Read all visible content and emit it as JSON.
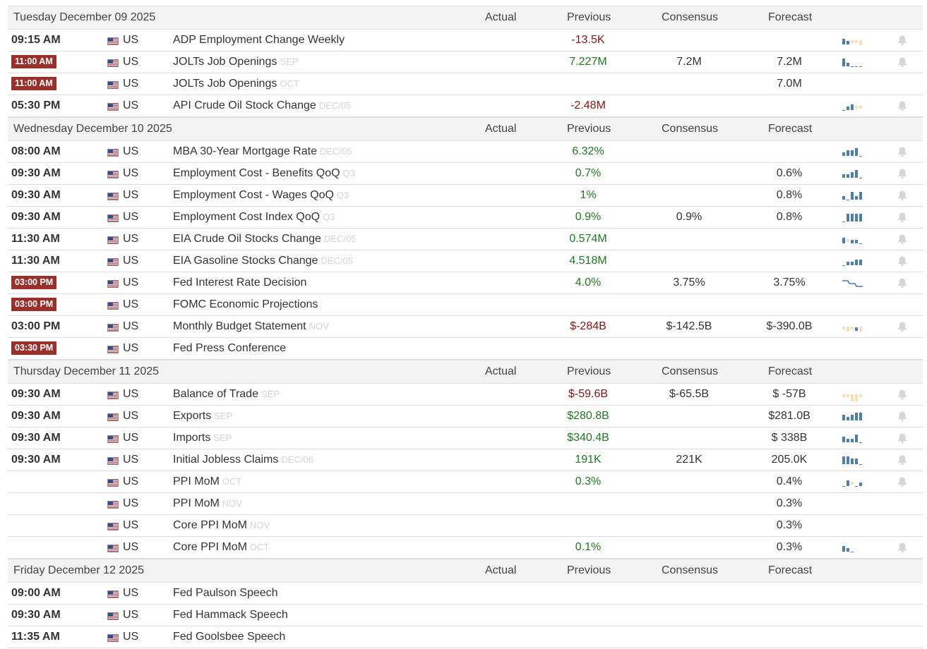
{
  "columns": {
    "actual": "Actual",
    "previous": "Previous",
    "consensus": "Consensus",
    "forecast": "Forecast"
  },
  "colors": {
    "live_badge": "#9b2f2a",
    "positive": "#1e7a1e",
    "negative": "#8b1010",
    "spark_blue": "#4a7eb5",
    "spark_beige": "#f5dfb3",
    "bell": "#d6d6d6"
  },
  "days": [
    {
      "date": "Tuesday December 09 2025",
      "events": [
        {
          "time": "09:15 AM",
          "live": false,
          "country": "US",
          "name": "ADP Employment Change Weekly",
          "ref": "",
          "actual": "",
          "previous": "-13.5K",
          "previous_tone": "neg",
          "consensus": "",
          "forecast": "",
          "spark": [
            "u2",
            "u1",
            "d1",
            "d1",
            "d2"
          ],
          "bell": true
        },
        {
          "time": "11:00 AM",
          "live": true,
          "country": "US",
          "name": "JOLTs Job Openings",
          "ref": "SEP",
          "actual": "",
          "previous": "7.227M",
          "previous_tone": "pos",
          "consensus": "7.2M",
          "forecast": "7.2M",
          "spark": [
            "u3",
            "u1",
            "u0",
            "u0",
            "u0"
          ],
          "bell": true
        },
        {
          "time": "11:00 AM",
          "live": true,
          "country": "US",
          "name": "JOLTs Job Openings",
          "ref": "OCT",
          "actual": "",
          "previous": "",
          "previous_tone": "neu",
          "consensus": "",
          "forecast": "7.0M",
          "spark": null,
          "bell": false
        },
        {
          "time": "05:30 PM",
          "live": false,
          "country": "US",
          "name": "API Crude Oil Stock Change",
          "ref": "DEC/05",
          "actual": "",
          "previous": "-2.48M",
          "previous_tone": "neg",
          "consensus": "",
          "forecast": "",
          "spark": [
            "u0",
            "u1",
            "u2",
            "d1",
            "d1"
          ],
          "bell": true
        }
      ]
    },
    {
      "date": "Wednesday December 10 2025",
      "events": [
        {
          "time": "08:00 AM",
          "live": false,
          "country": "US",
          "name": "MBA 30-Year Mortgage Rate",
          "ref": "DEC/05",
          "actual": "",
          "previous": "6.32%",
          "previous_tone": "pos",
          "consensus": "",
          "forecast": "",
          "spark": [
            "u1",
            "u2",
            "u2",
            "u3",
            "u0"
          ],
          "bell": true
        },
        {
          "time": "09:30 AM",
          "live": false,
          "country": "US",
          "name": "Employment Cost - Benefits QoQ",
          "ref": "Q3",
          "actual": "",
          "previous": "0.7%",
          "previous_tone": "pos",
          "consensus": "",
          "forecast": "0.6%",
          "spark": [
            "u1",
            "u1",
            "u2",
            "u3",
            "u0"
          ],
          "bell": true
        },
        {
          "time": "09:30 AM",
          "live": false,
          "country": "US",
          "name": "Employment Cost - Wages QoQ",
          "ref": "Q3",
          "actual": "",
          "previous": "1%",
          "previous_tone": "pos",
          "consensus": "",
          "forecast": "0.8%",
          "spark": [
            "u1",
            "u0",
            "u3",
            "u1",
            "u3"
          ],
          "bell": true
        },
        {
          "time": "09:30 AM",
          "live": false,
          "country": "US",
          "name": "Employment Cost Index QoQ",
          "ref": "Q3",
          "actual": "",
          "previous": "0.9%",
          "previous_tone": "pos",
          "consensus": "0.9%",
          "forecast": "0.8%",
          "spark": [
            "u0",
            "u3",
            "u3",
            "u3",
            "u3"
          ],
          "bell": true
        },
        {
          "time": "11:30 AM",
          "live": false,
          "country": "US",
          "name": "EIA Crude Oil Stocks Change",
          "ref": "DEC/05",
          "actual": "",
          "previous": "0.574M",
          "previous_tone": "pos",
          "consensus": "",
          "forecast": "",
          "spark": [
            "u2",
            "d1",
            "u1",
            "u1",
            "u0"
          ],
          "bell": true
        },
        {
          "time": "11:30 AM",
          "live": false,
          "country": "US",
          "name": "EIA Gasoline Stocks Change",
          "ref": "DEC/05",
          "actual": "",
          "previous": "4.518M",
          "previous_tone": "pos",
          "consensus": "",
          "forecast": "",
          "spark": [
            "u0",
            "u1",
            "u1",
            "u2",
            "u2"
          ],
          "bell": true
        },
        {
          "time": "03:00 PM",
          "live": true,
          "country": "US",
          "name": "Fed Interest Rate Decision",
          "ref": "",
          "actual": "",
          "previous": "4.0%",
          "previous_tone": "pos",
          "consensus": "3.75%",
          "forecast": "3.75%",
          "spark": "step",
          "bell": true
        },
        {
          "time": "03:00 PM",
          "live": true,
          "country": "US",
          "name": "FOMC Economic Projections",
          "ref": "",
          "actual": "",
          "previous": "",
          "previous_tone": "neu",
          "consensus": "",
          "forecast": "",
          "spark": null,
          "bell": false
        },
        {
          "time": "03:00 PM",
          "live": false,
          "country": "US",
          "name": "Monthly Budget Statement",
          "ref": "NOV",
          "actual": "",
          "previous": "$-284B",
          "previous_tone": "neg",
          "consensus": "$-142.5B",
          "forecast": "$-390.0B",
          "spark": [
            "d1",
            "d2",
            "d1",
            "u1",
            "d2"
          ],
          "bell": true
        },
        {
          "time": "03:30 PM",
          "live": true,
          "country": "US",
          "name": "Fed Press Conference",
          "ref": "",
          "actual": "",
          "previous": "",
          "previous_tone": "neu",
          "consensus": "",
          "forecast": "",
          "spark": null,
          "bell": false
        }
      ]
    },
    {
      "date": "Thursday December 11 2025",
      "events": [
        {
          "time": "09:30 AM",
          "live": false,
          "country": "US",
          "name": "Balance of Trade",
          "ref": "SEP",
          "actual": "",
          "previous": "$-59.6B",
          "previous_tone": "neg",
          "consensus": "$-65.5B",
          "forecast": "$ -57B",
          "spark": [
            "d1",
            "d1",
            "d3",
            "d3",
            "d1"
          ],
          "bell": true
        },
        {
          "time": "09:30 AM",
          "live": false,
          "country": "US",
          "name": "Exports",
          "ref": "SEP",
          "actual": "",
          "previous": "$280.8B",
          "previous_tone": "pos",
          "consensus": "",
          "forecast": "$281.0B",
          "spark": [
            "u2",
            "u1",
            "u2",
            "u3",
            "u3"
          ],
          "bell": true
        },
        {
          "time": "09:30 AM",
          "live": false,
          "country": "US",
          "name": "Imports",
          "ref": "SEP",
          "actual": "",
          "previous": "$340.4B",
          "previous_tone": "pos",
          "consensus": "",
          "forecast": "$ 338B",
          "spark": [
            "u2",
            "u1",
            "u1",
            "u3",
            "u0"
          ],
          "bell": true
        },
        {
          "time": "09:30 AM",
          "live": false,
          "country": "US",
          "name": "Initial Jobless Claims",
          "ref": "DEC/06",
          "actual": "",
          "previous": "191K",
          "previous_tone": "pos",
          "consensus": "221K",
          "forecast": "205.0K",
          "spark": [
            "u3",
            "u3",
            "u2",
            "u2",
            "u0"
          ],
          "bell": true
        },
        {
          "time": "",
          "live": false,
          "country": "US",
          "name": "PPI MoM",
          "ref": "OCT",
          "actual": "",
          "previous": "0.3%",
          "previous_tone": "pos",
          "consensus": "",
          "forecast": "0.4%",
          "spark": [
            "u0",
            "u2",
            "d1",
            "u0",
            "u1"
          ],
          "bell": true
        },
        {
          "time": "",
          "live": false,
          "country": "US",
          "name": "PPI MoM",
          "ref": "NOV",
          "actual": "",
          "previous": "",
          "previous_tone": "neu",
          "consensus": "",
          "forecast": "0.3%",
          "spark": null,
          "bell": false
        },
        {
          "time": "",
          "live": false,
          "country": "US",
          "name": "Core PPI MoM",
          "ref": "NOV",
          "actual": "",
          "previous": "",
          "previous_tone": "neu",
          "consensus": "",
          "forecast": "0.3%",
          "spark": null,
          "bell": false
        },
        {
          "time": "",
          "live": false,
          "country": "US",
          "name": "Core PPI MoM",
          "ref": "OCT",
          "actual": "",
          "previous": "0.1%",
          "previous_tone": "pos",
          "consensus": "",
          "forecast": "0.3%",
          "spark": [
            "u2",
            "u1",
            "u0"
          ],
          "bell": true
        }
      ]
    },
    {
      "date": "Friday December 12 2025",
      "events": [
        {
          "time": "09:00 AM",
          "live": false,
          "country": "US",
          "name": "Fed Paulson Speech",
          "ref": "",
          "actual": "",
          "previous": "",
          "previous_tone": "neu",
          "consensus": "",
          "forecast": "",
          "spark": null,
          "bell": false
        },
        {
          "time": "09:30 AM",
          "live": false,
          "country": "US",
          "name": "Fed Hammack Speech",
          "ref": "",
          "actual": "",
          "previous": "",
          "previous_tone": "neu",
          "consensus": "",
          "forecast": "",
          "spark": null,
          "bell": false
        },
        {
          "time": "11:35 AM",
          "live": false,
          "country": "US",
          "name": "Fed Goolsbee Speech",
          "ref": "",
          "actual": "",
          "previous": "",
          "previous_tone": "neu",
          "consensus": "",
          "forecast": "",
          "spark": null,
          "bell": false
        }
      ]
    }
  ]
}
